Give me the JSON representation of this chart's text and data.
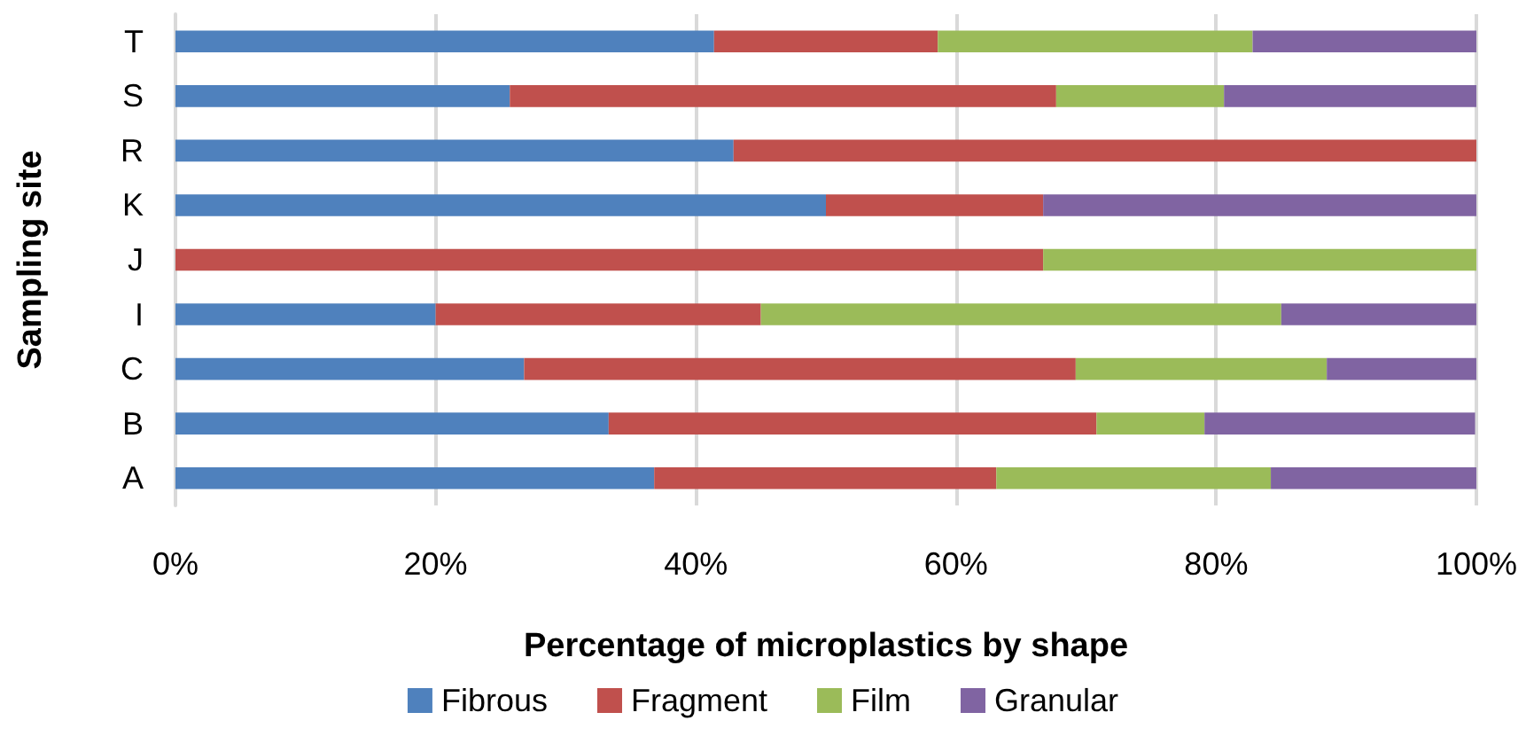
{
  "chart_data": {
    "type": "bar",
    "orientation": "horizontal",
    "stacked": true,
    "xlabel": "Percentage of microplastics by shape",
    "ylabel": "Sampling site",
    "categories": [
      "T",
      "S",
      "R",
      "K",
      "J",
      "I",
      "C",
      "B",
      "A"
    ],
    "series": [
      {
        "name": "Fibrous",
        "color": "#4f81bd",
        "values": [
          41.4,
          25.7,
          42.9,
          50,
          0,
          20,
          26.8,
          33.3,
          36.8
        ]
      },
      {
        "name": "Fragment",
        "color": "#c0504d",
        "values": [
          17.2,
          42.0,
          57.1,
          16.7,
          66.7,
          25,
          42.4,
          37.5,
          26.3
        ]
      },
      {
        "name": "Film",
        "color": "#9bbb59",
        "values": [
          24.2,
          12.9,
          0,
          0,
          33.3,
          40,
          19.3,
          8.3,
          21.1
        ]
      },
      {
        "name": "Granular",
        "color": "#8064a2",
        "values": [
          17.2,
          19.4,
          0,
          33.3,
          0,
          15,
          11.5,
          20.8,
          15.8
        ]
      }
    ],
    "xlim": [
      0,
      100
    ],
    "xticks": [
      {
        "value": 0,
        "label": "0%"
      },
      {
        "value": 20,
        "label": "20%"
      },
      {
        "value": 40,
        "label": "40%"
      },
      {
        "value": 60,
        "label": "60%"
      },
      {
        "value": 80,
        "label": "80%"
      },
      {
        "value": 100,
        "label": "100%"
      }
    ],
    "grid": "x",
    "legend": "bottom"
  }
}
